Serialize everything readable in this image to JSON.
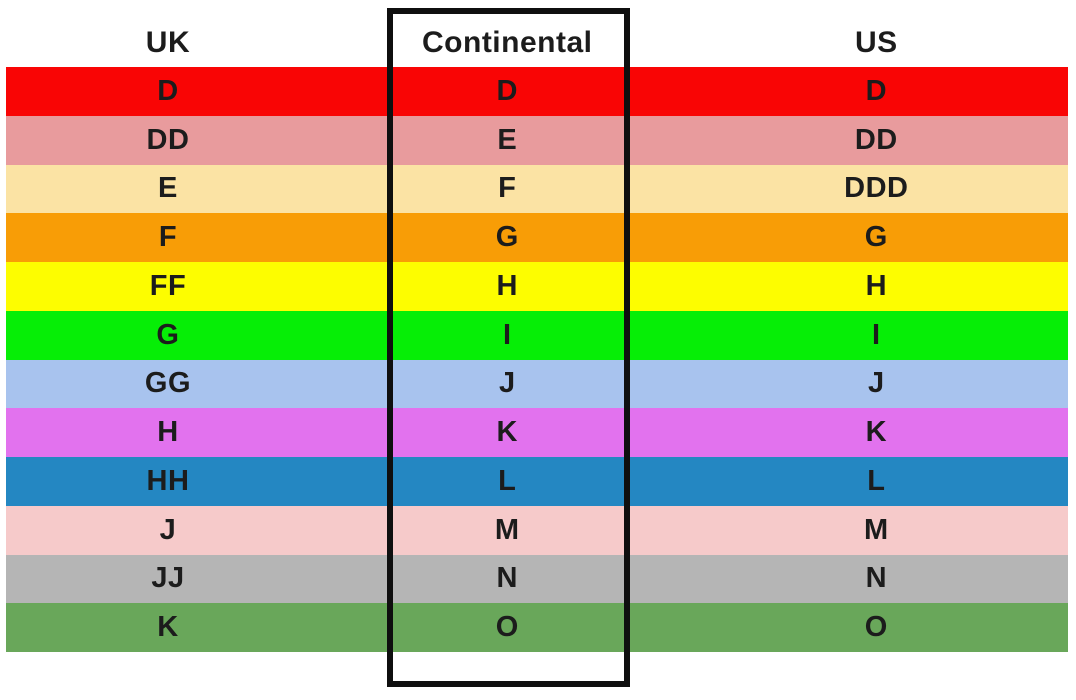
{
  "chart_data": {
    "type": "table",
    "columns": [
      "UK",
      "Continental",
      "US"
    ],
    "rows": [
      [
        "D",
        "D",
        "D"
      ],
      [
        "DD",
        "E",
        "DD"
      ],
      [
        "E",
        "F",
        "DDD"
      ],
      [
        "F",
        "G",
        "G"
      ],
      [
        "FF",
        "H",
        "H"
      ],
      [
        "G",
        "I",
        "I"
      ],
      [
        "GG",
        "J",
        "J"
      ],
      [
        "H",
        "K",
        "K"
      ],
      [
        "HH",
        "L",
        "L"
      ],
      [
        "J",
        "M",
        "M"
      ],
      [
        "JJ",
        "N",
        "N"
      ],
      [
        "K",
        "O",
        "O"
      ]
    ],
    "row_colors": [
      "#f90505",
      "#e89b9d",
      "#fbe3a4",
      "#f89d06",
      "#fdfd00",
      "#06ee06",
      "#a8c3ee",
      "#e272ee",
      "#2487c2",
      "#f6caca",
      "#b5b5b5",
      "#69a75a"
    ],
    "highlighted_column": "Continental",
    "text_color": "#1c1c1c",
    "highlight_border_color": "#0f0f0f",
    "background": "#ffffff",
    "legend_position": "none",
    "grid": false
  }
}
